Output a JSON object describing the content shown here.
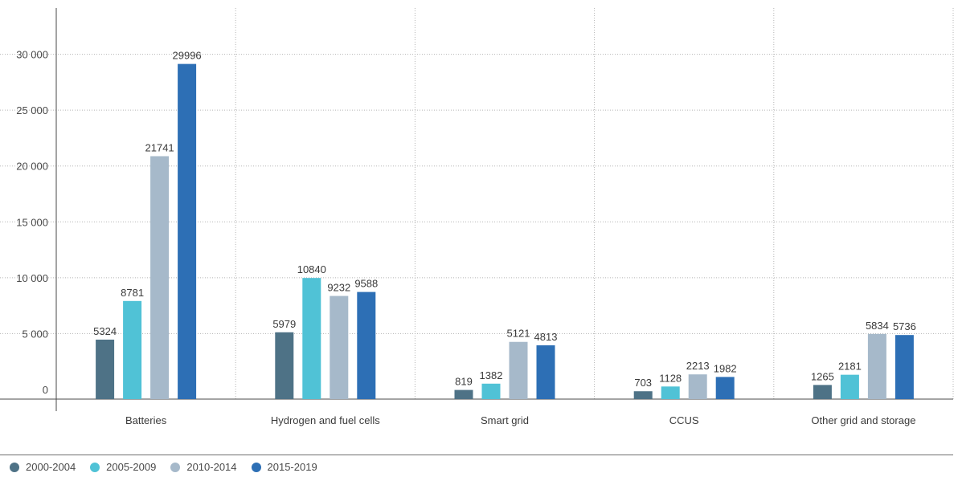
{
  "chart_data": {
    "type": "bar",
    "categories": [
      "Batteries",
      "Hydrogen and fuel cells",
      "Smart grid",
      "CCUS",
      "Other grid and storage"
    ],
    "series": [
      {
        "name": "2000-2004",
        "color": "#4e7286",
        "values": [
          5324,
          5979,
          819,
          703,
          1265
        ],
        "labels": [
          "5324",
          "5979",
          "819",
          "703",
          "1265"
        ]
      },
      {
        "name": "2005-2009",
        "color": "#50c2d6",
        "values": [
          8781,
          10840,
          1382,
          1128,
          2181
        ],
        "labels": [
          "8781",
          "10840",
          "1382",
          "1128",
          "2181"
        ]
      },
      {
        "name": "2010-2014",
        "color": "#a6b9ca",
        "values": [
          21741,
          9232,
          5121,
          2213,
          5834
        ],
        "labels": [
          "21741",
          "9232",
          "5121",
          "2213",
          "5834"
        ]
      },
      {
        "name": "2015-2019",
        "color": "#2d6fb5",
        "values": [
          29996,
          9588,
          4813,
          1982,
          5736
        ],
        "labels": [
          "29996",
          "9588",
          "4813",
          "1982",
          "5736"
        ]
      }
    ],
    "yticks": [
      0,
      5000,
      10000,
      15000,
      20000,
      25000,
      30000
    ],
    "ytick_labels": [
      "0",
      "5 000",
      "10 000",
      "15 000",
      "20 000",
      "25 000",
      "30 000"
    ],
    "ylim": [
      0,
      35000
    ],
    "grid": true,
    "legend_position": "bottom-left"
  }
}
